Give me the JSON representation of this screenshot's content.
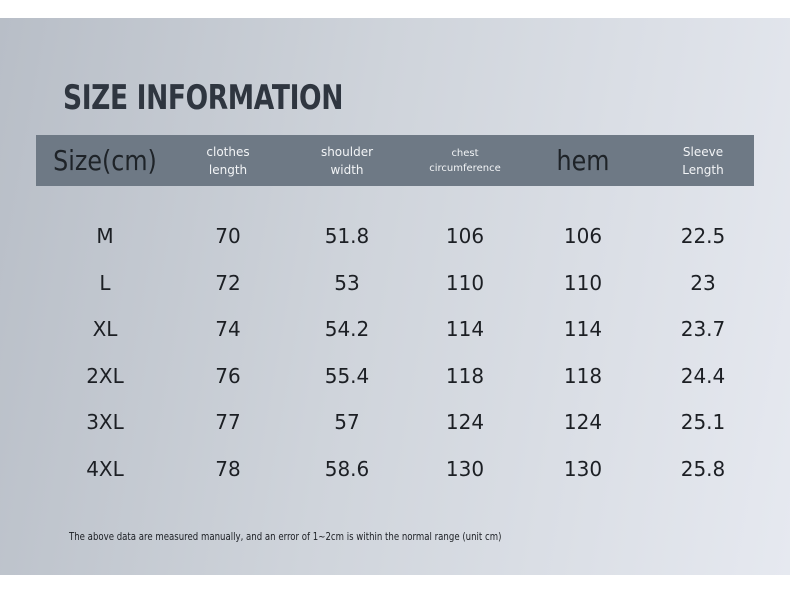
{
  "title": "SIZE INFORMATION",
  "table": {
    "headers": [
      "Size(cm)",
      "clothes length",
      "shoulder width",
      "chest circumference",
      "hem",
      "Sleeve Length"
    ],
    "rows": [
      [
        "M",
        "70",
        "51.8",
        "106",
        "106",
        "22.5"
      ],
      [
        "L",
        "72",
        "53",
        "110",
        "110",
        "23"
      ],
      [
        "XL",
        "74",
        "54.2",
        "114",
        "114",
        "23.7"
      ],
      [
        "2XL",
        "76",
        "55.4",
        "118",
        "118",
        "24.4"
      ],
      [
        "3XL",
        "77",
        "57",
        "124",
        "124",
        "25.1"
      ],
      [
        "4XL",
        "78",
        "58.6",
        "130",
        "130",
        "25.8"
      ]
    ]
  },
  "note": "The above data are measured manually, and an error of 1~2cm is within the normal range (unit cm)"
}
